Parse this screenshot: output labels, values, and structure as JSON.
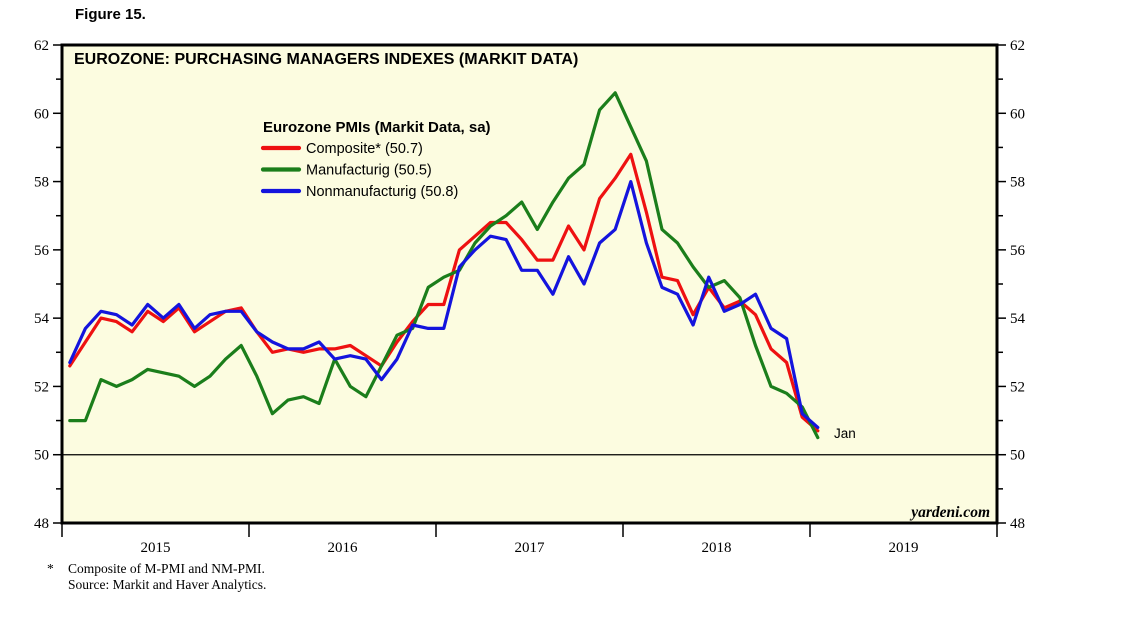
{
  "figure_label": "Figure 15.",
  "chart": {
    "title": "EUROZONE: PURCHASING MANAGERS INDEXES (MARKIT DATA)",
    "legend_title": "Eurozone PMIs (Markit Data, sa)",
    "watermark": "yardeni.com",
    "last_point_label": "Jan",
    "background": "#fcfce0",
    "frame_color": "#000000"
  },
  "chart_data": {
    "type": "line",
    "x_unit": "month",
    "points_start": "2015-01",
    "points_end": "2019-01",
    "x_axis_years": [
      "2015",
      "2016",
      "2017",
      "2018",
      "2019"
    ],
    "ylim": [
      48,
      62
    ],
    "y_major_ticks": [
      48,
      50,
      52,
      54,
      56,
      58,
      60,
      62
    ],
    "y_minor_step": 1,
    "reference_line": 50,
    "grid": false,
    "legend_position": "top-left-inside",
    "series": [
      {
        "name": "Composite* (50.7)",
        "color": "#ee1111",
        "values": [
          52.6,
          53.3,
          54.0,
          53.9,
          53.6,
          54.2,
          53.9,
          54.3,
          53.6,
          53.9,
          54.2,
          54.3,
          53.6,
          53.0,
          53.1,
          53.0,
          53.1,
          53.1,
          53.2,
          52.9,
          52.6,
          53.3,
          53.9,
          54.4,
          54.4,
          56.0,
          56.4,
          56.8,
          56.8,
          56.3,
          55.7,
          55.7,
          56.7,
          56.0,
          57.5,
          58.1,
          58.8,
          57.1,
          55.2,
          55.1,
          54.1,
          54.9,
          54.3,
          54.5,
          54.1,
          53.1,
          52.7,
          51.1,
          50.7
        ]
      },
      {
        "name": "Manufacturig (50.5)",
        "color": "#1b7e1b",
        "values": [
          51.0,
          51.0,
          52.2,
          52.0,
          52.2,
          52.5,
          52.4,
          52.3,
          52.0,
          52.3,
          52.8,
          53.2,
          52.3,
          51.2,
          51.6,
          51.7,
          51.5,
          52.8,
          52.0,
          51.7,
          52.6,
          53.5,
          53.7,
          54.9,
          55.2,
          55.4,
          56.2,
          56.7,
          57.0,
          57.4,
          56.6,
          57.4,
          58.1,
          58.5,
          60.1,
          60.6,
          59.6,
          58.6,
          56.6,
          56.2,
          55.5,
          54.9,
          55.1,
          54.6,
          53.2,
          52.0,
          51.8,
          51.4,
          50.5
        ]
      },
      {
        "name": "Nonmanufacturig (50.8)",
        "color": "#1414dd",
        "values": [
          52.7,
          53.7,
          54.2,
          54.1,
          53.8,
          54.4,
          54.0,
          54.4,
          53.7,
          54.1,
          54.2,
          54.2,
          53.6,
          53.3,
          53.1,
          53.1,
          53.3,
          52.8,
          52.9,
          52.8,
          52.2,
          52.8,
          53.8,
          53.7,
          53.7,
          55.5,
          56.0,
          56.4,
          56.3,
          55.4,
          55.4,
          54.7,
          55.8,
          55.0,
          56.2,
          56.6,
          58.0,
          56.2,
          54.9,
          54.7,
          53.8,
          55.2,
          54.2,
          54.4,
          54.7,
          53.7,
          53.4,
          51.2,
          50.8
        ]
      }
    ]
  },
  "footnote": {
    "asterisk": "*",
    "line1": "Composite of M-PMI and NM-PMI.",
    "line2": "Source: Markit and Haver Analytics."
  }
}
